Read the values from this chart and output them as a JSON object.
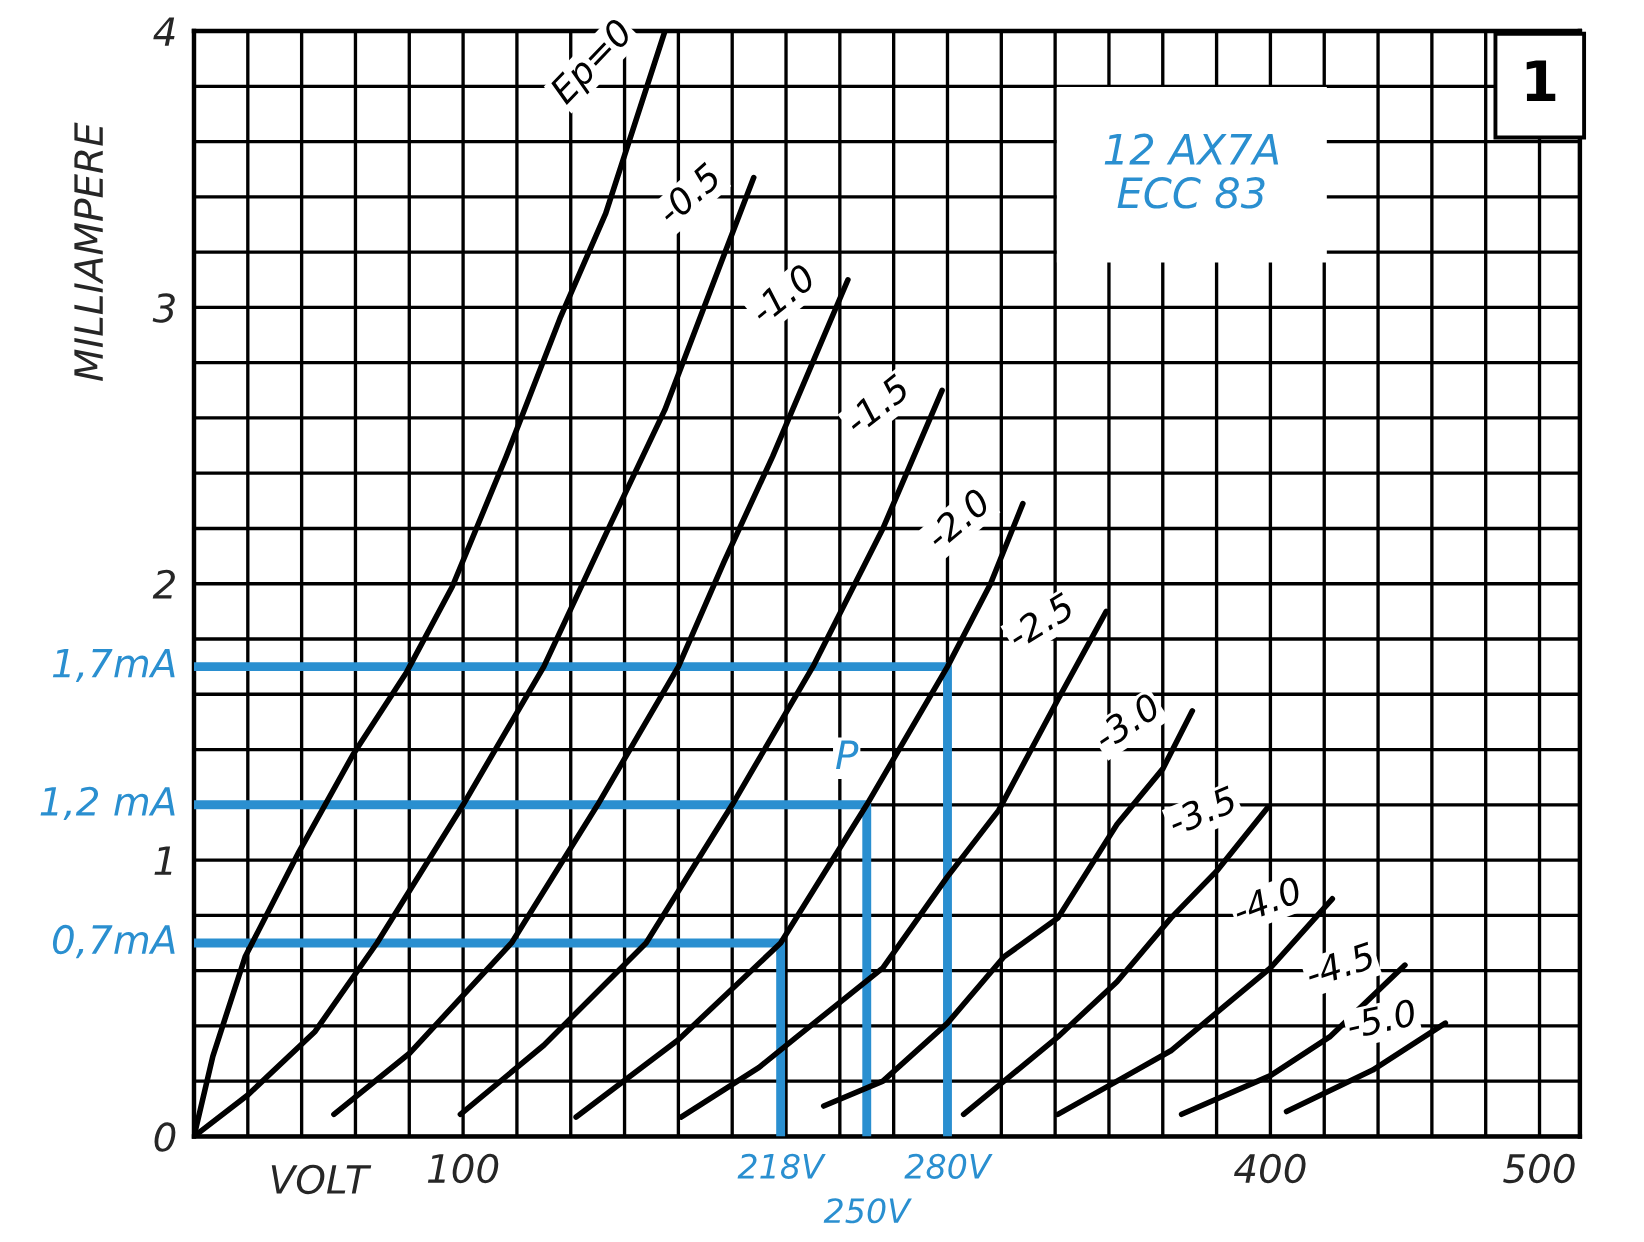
{
  "chart_data": {
    "type": "line",
    "xlabel": "VOLT",
    "ylabel": "MILLIAMPERE",
    "xlim": [
      0,
      515
    ],
    "ylim": [
      0,
      4
    ],
    "xticks": [
      {
        "value": 0,
        "label": null
      },
      {
        "value": 20,
        "label": null
      },
      {
        "value": 40,
        "label": null
      },
      {
        "value": 60,
        "label": null
      },
      {
        "value": 80,
        "label": null
      },
      100,
      {
        "value": 120,
        "label": null
      },
      {
        "value": 140,
        "label": null
      },
      {
        "value": 160,
        "label": null
      },
      {
        "value": 180,
        "label": null
      },
      {
        "value": 200,
        "label": null
      },
      {
        "value": 220,
        "label": null
      },
      {
        "value": 240,
        "label": null
      },
      {
        "value": 260,
        "label": null
      },
      {
        "value": 280,
        "label": null
      },
      {
        "value": 300,
        "label": null
      },
      {
        "value": 320,
        "label": null
      },
      {
        "value": 340,
        "label": null
      },
      {
        "value": 360,
        "label": null
      },
      {
        "value": 380,
        "label": null
      },
      400,
      {
        "value": 420,
        "label": null
      },
      {
        "value": 440,
        "label": null
      },
      {
        "value": 460,
        "label": null
      },
      {
        "value": 480,
        "label": null
      },
      500
    ],
    "yticks": [
      0,
      {
        "value": 0.2,
        "label": null
      },
      {
        "value": 0.4,
        "label": null
      },
      {
        "value": 0.6,
        "label": null
      },
      {
        "value": 0.8,
        "label": null
      },
      1,
      {
        "value": 1.2,
        "label": null
      },
      {
        "value": 1.4,
        "label": null
      },
      {
        "value": 1.6,
        "label": null
      },
      {
        "value": 1.8,
        "label": null
      },
      2,
      {
        "value": 2.2,
        "label": null
      },
      {
        "value": 2.4,
        "label": null
      },
      {
        "value": 2.6,
        "label": null
      },
      {
        "value": 2.8,
        "label": null
      },
      3,
      {
        "value": 3.2,
        "label": null
      },
      {
        "value": 3.4,
        "label": null
      },
      {
        "value": 3.6,
        "label": null
      },
      {
        "value": 3.8,
        "label": null
      },
      4
    ],
    "grid": true,
    "legend": false,
    "marker": "none",
    "line_style": "solid",
    "series": [
      {
        "name": "Ep=0",
        "color": "#000000",
        "x": [
          0,
          7,
          19,
          39,
          59,
          79,
          96,
          116,
          136,
          153,
          175
        ],
        "values": [
          0,
          0.29,
          0.65,
          1.03,
          1.38,
          1.68,
          1.99,
          2.46,
          2.96,
          3.34,
          4.0
        ]
      },
      {
        "name": "-0.5",
        "color": "#000000",
        "x": [
          0,
          20,
          45,
          68,
          100,
          130,
          155,
          175,
          195,
          208
        ],
        "values": [
          0,
          0.15,
          0.38,
          0.7,
          1.2,
          1.7,
          2.22,
          2.63,
          3.14,
          3.47
        ]
      },
      {
        "name": "-1.0",
        "color": "#000000",
        "x": [
          52,
          80,
          118,
          150,
          180,
          197,
          215,
          243
        ],
        "values": [
          0.08,
          0.3,
          0.7,
          1.2,
          1.7,
          2.08,
          2.46,
          3.1
        ]
      },
      {
        "name": "-1.5",
        "color": "#000000",
        "x": [
          99,
          130,
          168,
          200,
          230,
          256,
          278
        ],
        "values": [
          0.08,
          0.33,
          0.7,
          1.2,
          1.7,
          2.2,
          2.7
        ]
      },
      {
        "name": "-2.0",
        "color": "#000000",
        "x": [
          142,
          180,
          218,
          250,
          280,
          296,
          308
        ],
        "values": [
          0.07,
          0.35,
          0.7,
          1.2,
          1.7,
          2.0,
          2.29
        ]
      },
      {
        "name": "-2.5",
        "color": "#000000",
        "x": [
          181,
          210,
          224,
          256,
          280,
          299,
          321,
          339
        ],
        "values": [
          0.07,
          0.25,
          0.36,
          0.61,
          0.94,
          1.18,
          1.58,
          1.9
        ]
      },
      {
        "name": "-3.0",
        "color": "#000000",
        "x": [
          234,
          256,
          280,
          301,
          321,
          343,
          360,
          371
        ],
        "values": [
          0.11,
          0.2,
          0.41,
          0.65,
          0.79,
          1.13,
          1.33,
          1.54
        ]
      },
      {
        "name": "-3.5",
        "color": "#000000",
        "x": [
          286,
          301,
          321,
          343,
          363,
          380,
          399
        ],
        "values": [
          0.08,
          0.2,
          0.36,
          0.56,
          0.79,
          0.96,
          1.19
        ]
      },
      {
        "name": "-4.0",
        "color": "#000000",
        "x": [
          321,
          343,
          363,
          400,
          423
        ],
        "values": [
          0.08,
          0.2,
          0.31,
          0.61,
          0.86
        ]
      },
      {
        "name": "-4.5",
        "color": "#000000",
        "x": [
          367,
          400,
          422,
          450
        ],
        "values": [
          0.08,
          0.22,
          0.36,
          0.62
        ]
      },
      {
        "name": "-5.0",
        "color": "#000000",
        "x": [
          406,
          438,
          465
        ],
        "values": [
          0.09,
          0.24,
          0.41
        ]
      },
      {
        "color": "#2a8fd0",
        "x": [
          0,
          218,
          218
        ],
        "values": [
          0.7,
          0.7,
          0
        ]
      },
      {
        "color": "#2a8fd0",
        "x": [
          0,
          250,
          250
        ],
        "values": [
          1.2,
          1.2,
          0
        ]
      },
      {
        "color": "#2a8fd0",
        "x": [
          0,
          280,
          280
        ],
        "values": [
          1.7,
          1.7,
          0
        ]
      }
    ],
    "annotations": [
      "12 AX7A\nECC 83",
      "1",
      {
        "text": "0,7mA",
        "x": 0,
        "y": 0.7
      },
      {
        "text": "1,2 mA",
        "x": 0,
        "y": 1.2
      },
      {
        "text": "1,7mA",
        "x": 0,
        "y": 1.7
      },
      {
        "text": "218V",
        "x": 218,
        "y": 0
      },
      {
        "text": "250V",
        "x": 250,
        "y": 0
      },
      {
        "text": "280V",
        "x": 280,
        "y": 0
      },
      {
        "text": "P",
        "x": 250,
        "y": 1.2
      }
    ]
  }
}
